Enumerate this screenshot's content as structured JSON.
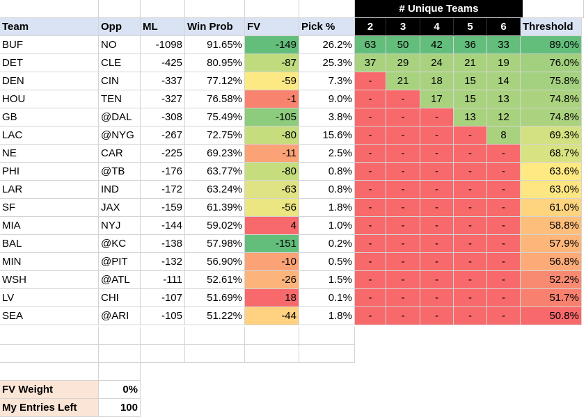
{
  "super_header": "# Unique Teams",
  "headers": {
    "team": "Team",
    "opp": "Opp",
    "ml": "ML",
    "winprob": "Win Prob",
    "fv": "FV",
    "pick": "Pick %",
    "u2": "2",
    "u3": "3",
    "u4": "4",
    "u5": "5",
    "u6": "6",
    "threshold": "Threshold"
  },
  "rows": [
    {
      "team": "BUF",
      "opp": "NO",
      "ml": "-1098",
      "wp": "91.65%",
      "fv": "-149",
      "pick": "26.2%",
      "u": [
        "63",
        "50",
        "42",
        "36",
        "33"
      ],
      "th": "89.0%"
    },
    {
      "team": "DET",
      "opp": "CLE",
      "ml": "-425",
      "wp": "80.95%",
      "fv": "-87",
      "pick": "25.3%",
      "u": [
        "37",
        "29",
        "24",
        "21",
        "19"
      ],
      "th": "76.0%"
    },
    {
      "team": "DEN",
      "opp": "CIN",
      "ml": "-337",
      "wp": "77.12%",
      "fv": "-59",
      "pick": "7.3%",
      "u": [
        "-",
        "21",
        "18",
        "15",
        "14"
      ],
      "th": "75.8%"
    },
    {
      "team": "HOU",
      "opp": "TEN",
      "ml": "-327",
      "wp": "76.58%",
      "fv": "-1",
      "pick": "9.0%",
      "u": [
        "-",
        "-",
        "17",
        "15",
        "13"
      ],
      "th": "74.8%"
    },
    {
      "team": "GB",
      "opp": "@DAL",
      "ml": "-308",
      "wp": "75.49%",
      "fv": "-105",
      "pick": "3.8%",
      "u": [
        "-",
        "-",
        "-",
        "13",
        "12"
      ],
      "th": "74.8%"
    },
    {
      "team": "LAC",
      "opp": "@NYG",
      "ml": "-267",
      "wp": "72.75%",
      "fv": "-80",
      "pick": "15.6%",
      "u": [
        "-",
        "-",
        "-",
        "-",
        "8"
      ],
      "th": "69.3%"
    },
    {
      "team": "NE",
      "opp": "CAR",
      "ml": "-225",
      "wp": "69.23%",
      "fv": "-11",
      "pick": "2.5%",
      "u": [
        "-",
        "-",
        "-",
        "-",
        "-"
      ],
      "th": "68.7%"
    },
    {
      "team": "PHI",
      "opp": "@TB",
      "ml": "-176",
      "wp": "63.77%",
      "fv": "-80",
      "pick": "0.8%",
      "u": [
        "-",
        "-",
        "-",
        "-",
        "-"
      ],
      "th": "63.6%"
    },
    {
      "team": "LAR",
      "opp": "IND",
      "ml": "-172",
      "wp": "63.24%",
      "fv": "-63",
      "pick": "0.8%",
      "u": [
        "-",
        "-",
        "-",
        "-",
        "-"
      ],
      "th": "63.0%"
    },
    {
      "team": "SF",
      "opp": "JAX",
      "ml": "-159",
      "wp": "61.39%",
      "fv": "-56",
      "pick": "1.8%",
      "u": [
        "-",
        "-",
        "-",
        "-",
        "-"
      ],
      "th": "61.0%"
    },
    {
      "team": "MIA",
      "opp": "NYJ",
      "ml": "-144",
      "wp": "59.02%",
      "fv": "4",
      "pick": "1.0%",
      "u": [
        "-",
        "-",
        "-",
        "-",
        "-"
      ],
      "th": "58.8%"
    },
    {
      "team": "BAL",
      "opp": "@KC",
      "ml": "-138",
      "wp": "57.98%",
      "fv": "-151",
      "pick": "0.2%",
      "u": [
        "-",
        "-",
        "-",
        "-",
        "-"
      ],
      "th": "57.9%"
    },
    {
      "team": "MIN",
      "opp": "@PIT",
      "ml": "-132",
      "wp": "56.90%",
      "fv": "-10",
      "pick": "0.5%",
      "u": [
        "-",
        "-",
        "-",
        "-",
        "-"
      ],
      "th": "56.8%"
    },
    {
      "team": "WSH",
      "opp": "@ATL",
      "ml": "-111",
      "wp": "52.61%",
      "fv": "-26",
      "pick": "1.5%",
      "u": [
        "-",
        "-",
        "-",
        "-",
        "-"
      ],
      "th": "52.2%"
    },
    {
      "team": "LV",
      "opp": "CHI",
      "ml": "-107",
      "wp": "51.69%",
      "fv": "18",
      "pick": "0.1%",
      "u": [
        "-",
        "-",
        "-",
        "-",
        "-"
      ],
      "th": "51.7%"
    },
    {
      "team": "SEA",
      "opp": "@ARI",
      "ml": "-105",
      "wp": "51.22%",
      "fv": "-44",
      "pick": "1.8%",
      "u": [
        "-",
        "-",
        "-",
        "-",
        "-"
      ],
      "th": "50.8%"
    }
  ],
  "fv_colors": [
    "#63be7b",
    "#bfdb7d",
    "#fde983",
    "#f8846f",
    "#8dcc7d",
    "#c6dd7d",
    "#fba276",
    "#c6dd7d",
    "#e0e383",
    "#ebe582",
    "#f8696b",
    "#63be7b",
    "#fba276",
    "#fcb47a",
    "#f8696b",
    "#fed280"
  ],
  "unique_colors": [
    [
      "#63be7b",
      "#63be7b",
      "#63be7b",
      "#63be7b",
      "#63be7b"
    ],
    [
      "#a9d27f",
      "#a9d27f",
      "#a9d27f",
      "#a9d27f",
      "#a9d27f"
    ],
    [
      "#f8696b",
      "#a9d27f",
      "#a9d27f",
      "#a9d27f",
      "#a9d27f"
    ],
    [
      "#f8696b",
      "#f8696b",
      "#a9d27f",
      "#a9d27f",
      "#a9d27f"
    ],
    [
      "#f8696b",
      "#f8696b",
      "#f8696b",
      "#a9d27f",
      "#a9d27f"
    ],
    [
      "#f8696b",
      "#f8696b",
      "#f8696b",
      "#f8696b",
      "#a9d27f"
    ],
    [
      "#f8696b",
      "#f8696b",
      "#f8696b",
      "#f8696b",
      "#f8696b"
    ],
    [
      "#f8696b",
      "#f8696b",
      "#f8696b",
      "#f8696b",
      "#f8696b"
    ],
    [
      "#f8696b",
      "#f8696b",
      "#f8696b",
      "#f8696b",
      "#f8696b"
    ],
    [
      "#f8696b",
      "#f8696b",
      "#f8696b",
      "#f8696b",
      "#f8696b"
    ],
    [
      "#f8696b",
      "#f8696b",
      "#f8696b",
      "#f8696b",
      "#f8696b"
    ],
    [
      "#f8696b",
      "#f8696b",
      "#f8696b",
      "#f8696b",
      "#f8696b"
    ],
    [
      "#f8696b",
      "#f8696b",
      "#f8696b",
      "#f8696b",
      "#f8696b"
    ],
    [
      "#f8696b",
      "#f8696b",
      "#f8696b",
      "#f8696b",
      "#f8696b"
    ],
    [
      "#f8696b",
      "#f8696b",
      "#f8696b",
      "#f8696b",
      "#f8696b"
    ],
    [
      "#f8696b",
      "#f8696b",
      "#f8696b",
      "#f8696b",
      "#f8696b"
    ]
  ],
  "threshold_colors": [
    "#63be7b",
    "#a2d07f",
    "#a4d17f",
    "#abd37f",
    "#abd37f",
    "#d3e182",
    "#d8e282",
    "#fee983",
    "#fee683",
    "#fed47f",
    "#fdbe7b",
    "#fdb67a",
    "#fcab78",
    "#f98a72",
    "#f8806f",
    "#f8696b"
  ],
  "footer": [
    {
      "label": "FV Weight",
      "value": "0%"
    },
    {
      "label": "My Entries Left",
      "value": "100"
    }
  ]
}
